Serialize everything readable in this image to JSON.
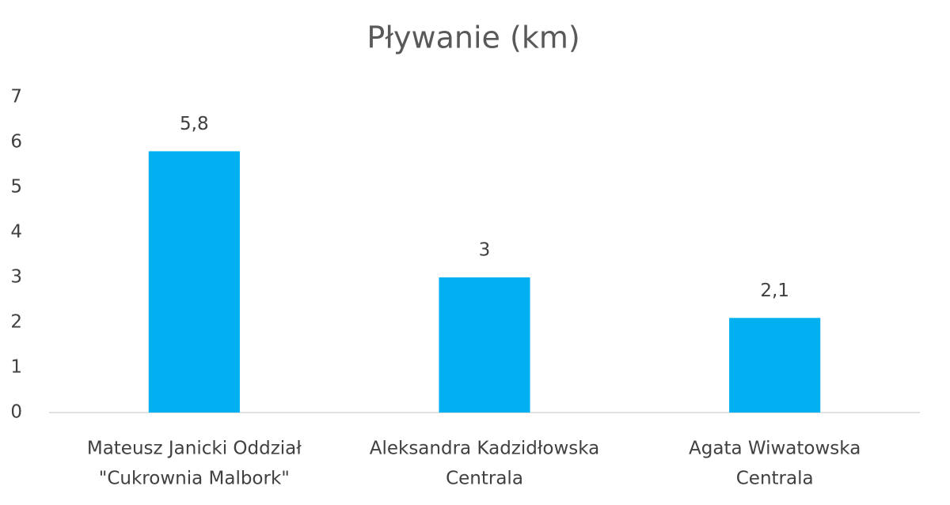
{
  "chart_data": {
    "type": "bar",
    "title": "Pływanie (km)",
    "categories": [
      [
        "Mateusz Janicki Oddział",
        "\"Cukrownia Malbork\""
      ],
      [
        "Aleksandra Kadzidłowska",
        "Centrala"
      ],
      [
        "Agata Wiwatowska",
        "Centrala"
      ]
    ],
    "values": [
      5.8,
      3,
      2.1
    ],
    "value_labels": [
      "5,8",
      "3",
      "2,1"
    ],
    "color": "#00b0f0",
    "ylim": [
      0,
      7
    ],
    "yticks": [
      0,
      1,
      2,
      3,
      4,
      5,
      6,
      7
    ],
    "grid": false
  }
}
